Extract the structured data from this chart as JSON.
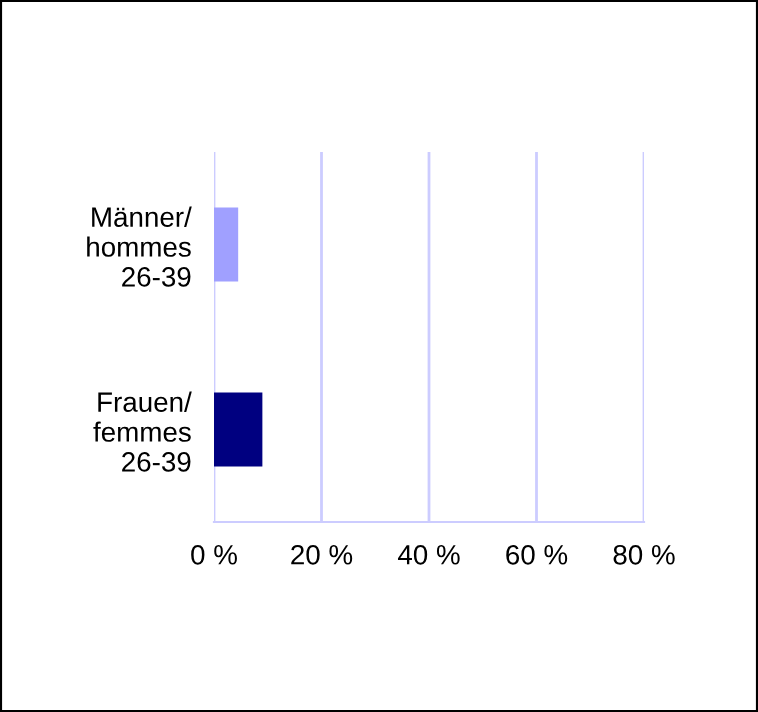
{
  "chart_data": {
    "type": "bar",
    "orientation": "horizontal",
    "categories": [
      "Männer/\nhommes\n26-39",
      "Frauen/\nfemmes\n26-39"
    ],
    "values": [
      4.5,
      9
    ],
    "colors": [
      "#a0a0ff",
      "#000080"
    ],
    "xlim": [
      0,
      80
    ],
    "xticks": [
      {
        "value": 0,
        "label": "0 %"
      },
      {
        "value": 20,
        "label": "20 %"
      },
      {
        "value": 40,
        "label": "40 %"
      },
      {
        "value": 60,
        "label": "60 %"
      },
      {
        "value": 80,
        "label": "80 %"
      }
    ],
    "grid": "x"
  }
}
